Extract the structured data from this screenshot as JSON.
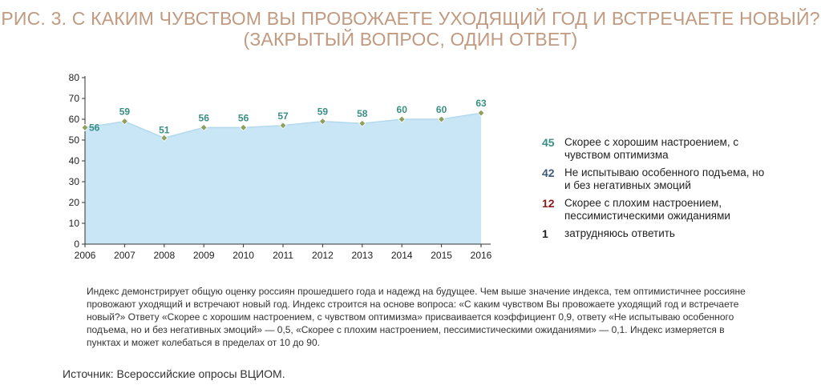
{
  "title": {
    "line1": "РИС. 3. С КАКИМ ЧУВСТВОМ ВЫ ПРОВОЖАЕТЕ УХОДЯЩИЙ ГОД И ВСТРЕЧАЕТЕ НОВЫЙ?",
    "line2": "(ЗАКРЫТЫЙ ВОПРОС, ОДИН ОТВЕТ)"
  },
  "chart_data": {
    "type": "area",
    "x": [
      "2006",
      "2007",
      "2008",
      "2009",
      "2010",
      "2011",
      "2012",
      "2013",
      "2014",
      "2015",
      "2016"
    ],
    "values": [
      56,
      59,
      51,
      56,
      56,
      57,
      59,
      58,
      60,
      60,
      63
    ],
    "ylim": [
      0,
      80
    ],
    "yticks": [
      0,
      10,
      20,
      30,
      40,
      50,
      60,
      70,
      80
    ],
    "grid": false,
    "colors": {
      "fill": "#c9e6f6",
      "marker": "#8ea05f",
      "label": "#3a8f85",
      "axis": "#333333"
    }
  },
  "legend": [
    {
      "value": "45",
      "label": "Скорее с хорошим настроением, с чувством оптимизма",
      "color": "#3a8f85"
    },
    {
      "value": "42",
      "label": "Не испытываю особенного подъема, но и без негативных эмоций",
      "color": "#3f5a78"
    },
    {
      "value": "12",
      "label": "Скорее с плохим настроением, пессимистическими ожиданиями",
      "color": "#8b1a1a"
    },
    {
      "value": "1",
      "label": "затрудняюсь ответить",
      "color": "#222222"
    }
  ],
  "note": "Индекс демонстрирует общую оценку россиян прошедшего года и надежд на будущее. Чем выше значение индекса, тем оптимистичнее россияне провожают уходящий и встречают новый год. Индекс строится на основе вопроса: «С каким чувством Вы провожаете уходящий год и встречаете новый?» Ответу «Скорее с хорошим настроением, с чувством оптимизма» присваивается коэффициент 0,9, ответу «Не испытываю особенного подъема, но и без негативных эмоций» — 0,5, «Скорее с плохим настроением, пессимистическими ожиданиями» — 0,1. Индекс измеряется в пунктах и может колебаться в пределах от 10 до 90.",
  "source": "Источник: Всероссийские опросы ВЦИОМ."
}
